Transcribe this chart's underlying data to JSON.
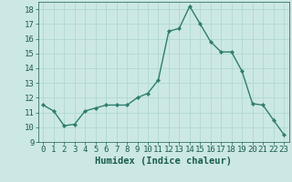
{
  "x": [
    0,
    1,
    2,
    3,
    4,
    5,
    6,
    7,
    8,
    9,
    10,
    11,
    12,
    13,
    14,
    15,
    16,
    17,
    18,
    19,
    20,
    21,
    22,
    23
  ],
  "y": [
    11.5,
    11.1,
    10.1,
    10.2,
    11.1,
    11.3,
    11.5,
    11.5,
    11.5,
    12.0,
    12.3,
    13.2,
    16.5,
    16.7,
    18.2,
    17.0,
    15.8,
    15.1,
    15.1,
    13.8,
    11.6,
    11.5,
    10.5,
    9.5
  ],
  "line_color": "#2e7d6e",
  "marker": "D",
  "marker_size": 2.2,
  "line_width": 1.0,
  "bg_color": "#cce8e4",
  "grid_color": "#b0d8d2",
  "xlabel": "Humidex (Indice chaleur)",
  "xlabel_fontsize": 7.5,
  "ylim": [
    9,
    18.5
  ],
  "xlim": [
    -0.5,
    23.5
  ],
  "yticks": [
    9,
    10,
    11,
    12,
    13,
    14,
    15,
    16,
    17,
    18
  ],
  "xticks": [
    0,
    1,
    2,
    3,
    4,
    5,
    6,
    7,
    8,
    9,
    10,
    11,
    12,
    13,
    14,
    15,
    16,
    17,
    18,
    19,
    20,
    21,
    22,
    23
  ],
  "tick_fontsize": 6.5,
  "tick_color": "#1a5c50",
  "label_color": "#1a5c50"
}
